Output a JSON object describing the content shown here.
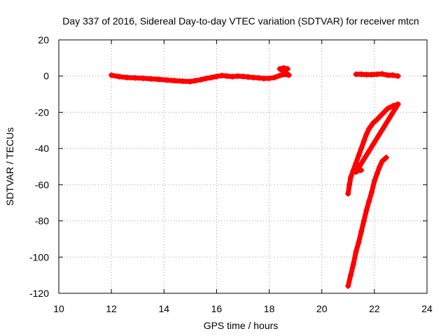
{
  "chart_data": {
    "type": "scatter",
    "title": "Day 337 of 2016, Sidereal Day-to-day VTEC variation (SDTVAR) for receiver mtcn",
    "xlabel": "GPS time / hours",
    "ylabel": "SDTVAR / TECUs",
    "xlim": [
      10,
      24
    ],
    "ylim": [
      -120,
      20
    ],
    "xticks": [
      10,
      12,
      14,
      16,
      18,
      20,
      22,
      24
    ],
    "yticks": [
      20,
      0,
      -20,
      -40,
      -60,
      -80,
      -100,
      -120
    ],
    "xtick_labels": [
      "10",
      "12",
      "14",
      "16",
      "18",
      "20",
      "22",
      "24"
    ],
    "ytick_labels": [
      "20",
      "0",
      "-20",
      "-40",
      "-60",
      "-80",
      "-100",
      "-120"
    ],
    "grid": true,
    "marker": "plus",
    "color": "#ff0000",
    "series": [
      {
        "points": [
          [
            12.0,
            0.5
          ],
          [
            12.3,
            -0.3
          ],
          [
            12.6,
            -0.8
          ],
          [
            12.9,
            -1.0
          ],
          [
            13.2,
            -1.2
          ],
          [
            13.5,
            -1.5
          ],
          [
            13.8,
            -1.8
          ],
          [
            14.1,
            -2.2
          ],
          [
            14.4,
            -2.5
          ],
          [
            14.7,
            -2.8
          ],
          [
            15.0,
            -3.0
          ],
          [
            15.2,
            -2.5
          ],
          [
            15.4,
            -2.0
          ],
          [
            15.6,
            -1.3
          ],
          [
            15.8,
            -0.8
          ],
          [
            16.0,
            -0.2
          ],
          [
            16.2,
            0.3
          ],
          [
            16.4,
            0.0
          ],
          [
            16.6,
            -0.3
          ],
          [
            16.8,
            0.0
          ],
          [
            17.0,
            -0.2
          ],
          [
            17.2,
            -0.5
          ],
          [
            17.4,
            -0.8
          ],
          [
            17.6,
            -1.0
          ],
          [
            17.8,
            -1.3
          ],
          [
            18.0,
            -1.2
          ],
          [
            18.2,
            -0.8
          ],
          [
            18.4,
            0.3
          ],
          [
            18.6,
            1.0
          ],
          [
            18.75,
            0.5
          ],
          [
            18.4,
            4.0
          ],
          [
            18.55,
            4.5
          ],
          [
            18.7,
            4.0
          ]
        ]
      },
      {
        "points": [
          [
            21.3,
            1.0
          ],
          [
            21.5,
            1.0
          ],
          [
            21.7,
            0.8
          ],
          [
            21.9,
            0.8
          ],
          [
            22.1,
            1.0
          ],
          [
            22.3,
            1.2
          ],
          [
            22.5,
            0.5
          ],
          [
            22.7,
            0.5
          ],
          [
            22.9,
            0.0
          ]
        ]
      },
      {
        "points": [
          [
            21.0,
            -65.0
          ],
          [
            21.05,
            -60.0
          ],
          [
            21.1,
            -56.0
          ],
          [
            21.2,
            -52.0
          ],
          [
            21.3,
            -48.0
          ],
          [
            21.4,
            -44.0
          ],
          [
            21.5,
            -40.0
          ],
          [
            21.6,
            -36.0
          ],
          [
            21.7,
            -32.0
          ],
          [
            21.8,
            -29.0
          ],
          [
            21.95,
            -26.0
          ],
          [
            22.1,
            -24.0
          ],
          [
            22.3,
            -21.0
          ],
          [
            22.5,
            -18.0
          ],
          [
            22.7,
            -16.5
          ],
          [
            22.9,
            -15.5
          ],
          [
            21.3,
            -53.0
          ],
          [
            21.4,
            -52.0
          ],
          [
            21.5,
            -52.0
          ]
        ]
      },
      {
        "points": [
          [
            21.0,
            -116.0
          ],
          [
            21.1,
            -110.0
          ],
          [
            21.2,
            -104.0
          ],
          [
            21.3,
            -97.0
          ],
          [
            21.4,
            -92.0
          ],
          [
            21.5,
            -86.0
          ],
          [
            21.6,
            -80.0
          ],
          [
            21.7,
            -74.0
          ],
          [
            21.8,
            -69.0
          ],
          [
            21.9,
            -64.0
          ],
          [
            22.0,
            -58.0
          ],
          [
            22.1,
            -54.0
          ],
          [
            22.2,
            -50.0
          ],
          [
            22.3,
            -47.0
          ],
          [
            22.45,
            -45.0
          ]
        ]
      }
    ]
  }
}
